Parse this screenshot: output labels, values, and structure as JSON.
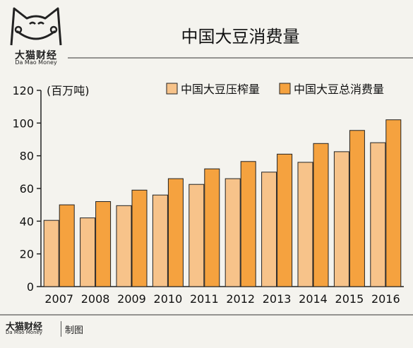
{
  "brand": {
    "name_cn": "大猫财经",
    "name_en": "Da Mao Money",
    "credit": "制图"
  },
  "chart_data": {
    "type": "bar",
    "title": "中国大豆消费量",
    "ylabel": "(百万吨)",
    "xlabel": "",
    "categories": [
      "2007",
      "2008",
      "2009",
      "2010",
      "2011",
      "2012",
      "2013",
      "2014",
      "2015",
      "2016"
    ],
    "series": [
      {
        "name": "中国大豆压榨量",
        "color": "#f7c38a",
        "values": [
          40.5,
          42,
          49.5,
          56,
          62.5,
          66,
          70,
          76,
          82.5,
          88
        ]
      },
      {
        "name": "中国大豆总消费量",
        "color": "#f5a23f",
        "values": [
          50,
          52,
          59,
          66,
          72,
          76.5,
          81,
          87.5,
          95.5,
          102
        ]
      }
    ],
    "ylim": [
      0,
      120
    ],
    "yticks": [
      0,
      20,
      40,
      60,
      80,
      100,
      120
    ],
    "grid": false,
    "legend": "top-right"
  }
}
